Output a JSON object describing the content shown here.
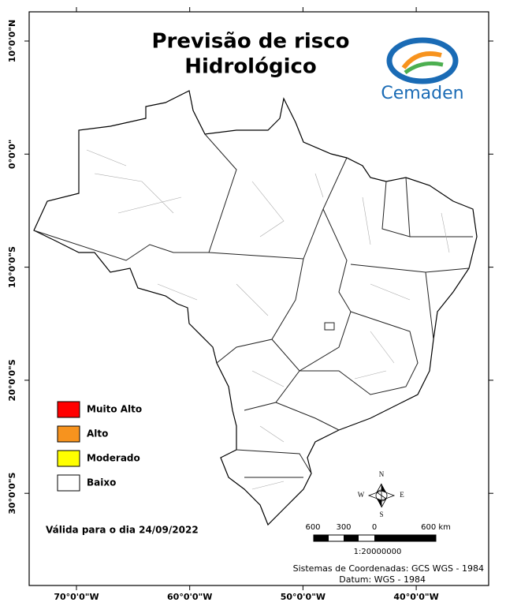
{
  "header": {
    "title_lines": [
      "Previsão de risco",
      "Hidrológico"
    ],
    "logo_text": "Cemaden"
  },
  "legend": [
    {
      "label": "Muito Alto",
      "color": "#ff0000"
    },
    {
      "label": "Alto",
      "color": "#f7931e"
    },
    {
      "label": "Moderado",
      "color": "#ffff00"
    },
    {
      "label": "Baixo",
      "color": "#ffffff"
    }
  ],
  "validity": "Válida para o dia 24/09/2022",
  "graticule": {
    "latitude": [
      "10°0'0\"N",
      "0°0'0\"",
      "10°0'0\"S",
      "20°0'0\"S",
      "30°0'0\"S"
    ],
    "longitude": [
      "70°0'0\"W",
      "60°0'0\"W",
      "50°0'0\"W",
      "40°0'0\"W"
    ]
  },
  "scale_bar": {
    "labels": [
      "600",
      "300",
      "0",
      "600 km"
    ],
    "ratio": "1:20000000"
  },
  "compass": {
    "north": "N",
    "south": "S",
    "east": "E",
    "west": "W"
  },
  "footer": {
    "coordinate_system": "Sistemas de Coordenadas: GCS WGS - 1984",
    "datum": "Datum: WGS - 1984"
  }
}
